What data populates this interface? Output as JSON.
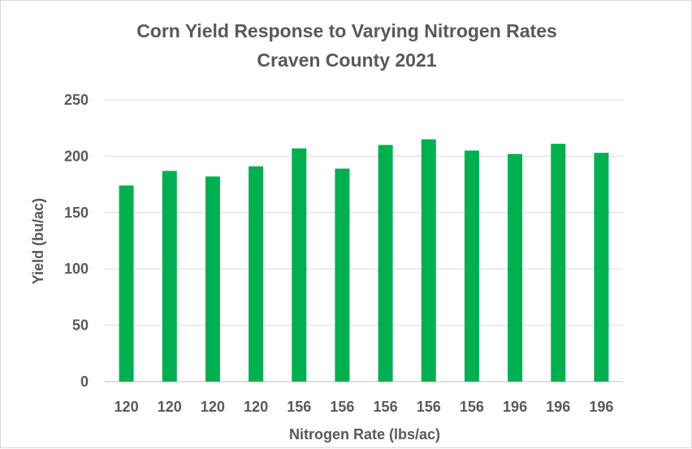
{
  "chart_data": {
    "type": "bar",
    "title": "Corn Yield Response to Varying Nitrogen Rates",
    "subtitle": "Craven County 2021",
    "xlabel": "Nitrogen Rate (lbs/ac)",
    "ylabel": "Yield (bu/ac)",
    "categories": [
      "120",
      "120",
      "120",
      "120",
      "156",
      "156",
      "156",
      "156",
      "156",
      "196",
      "196",
      "196"
    ],
    "values": [
      174,
      187,
      182,
      191,
      207,
      189,
      210,
      215,
      205,
      202,
      211,
      203
    ],
    "ylim": [
      0,
      250
    ],
    "yticks": [
      0,
      50,
      100,
      150,
      200,
      250
    ],
    "grid": true,
    "legend": "none",
    "bar_color": "#00b050"
  }
}
